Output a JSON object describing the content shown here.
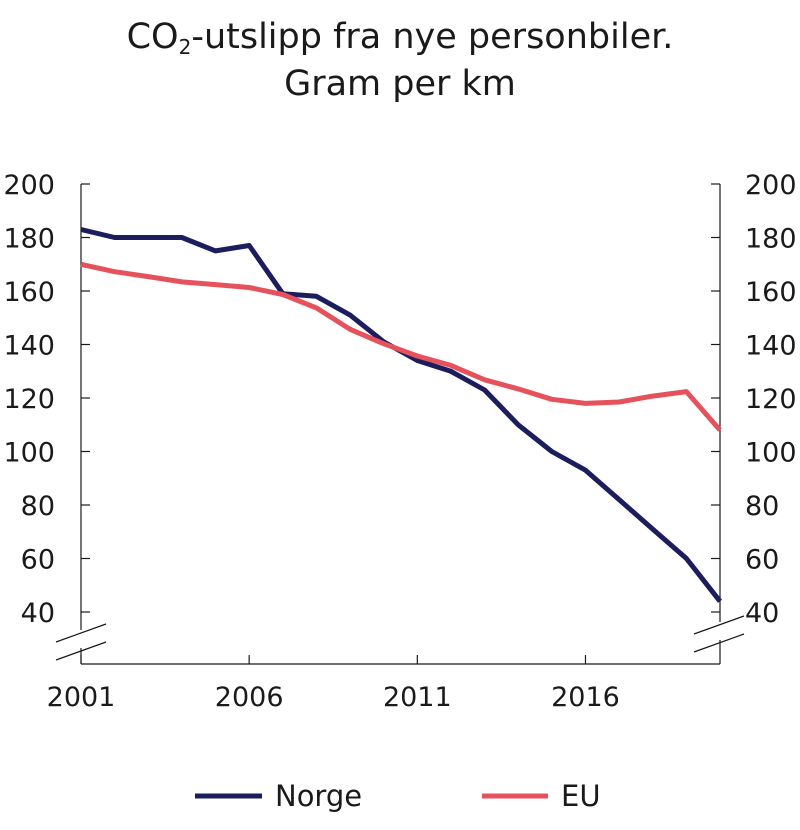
{
  "chart_data": {
    "type": "line",
    "title_prefix": "CO",
    "title_sub": "2",
    "title_suffix": "-utslipp fra nye personbiler.",
    "subtitle": "Gram per km",
    "x": [
      2001,
      2002,
      2003,
      2004,
      2005,
      2006,
      2007,
      2008,
      2009,
      2010,
      2011,
      2012,
      2013,
      2014,
      2015,
      2016,
      2017,
      2018,
      2019,
      2020
    ],
    "x_ticks": [
      "2001",
      "2006",
      "2011",
      "2016"
    ],
    "y_ticks": [
      "200",
      "180",
      "160",
      "140",
      "120",
      "100",
      "80",
      "60",
      "40"
    ],
    "ylim": [
      40,
      200
    ],
    "axis_break": true,
    "series": [
      {
        "name": "Norge",
        "color": "#1b1d5c",
        "values": [
          183,
          180,
          180,
          180,
          175,
          177,
          159,
          158,
          151,
          141,
          134,
          130,
          123,
          110,
          100,
          93,
          82,
          71,
          60,
          44
        ]
      },
      {
        "name": "EU",
        "color": "#e5525c",
        "values": [
          170,
          167.2,
          165.4,
          163.4,
          162.4,
          161.3,
          158.7,
          153.7,
          145.7,
          140.3,
          135.7,
          132.2,
          126.8,
          123.4,
          119.5,
          118,
          118.5,
          120.7,
          122.4,
          108
        ]
      }
    ],
    "legend": "bottom"
  }
}
